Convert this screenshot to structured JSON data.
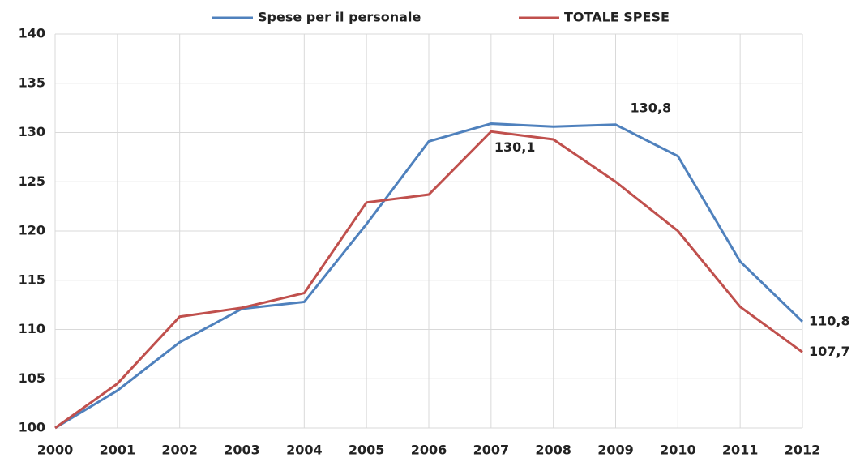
{
  "chart_data": {
    "type": "line",
    "categories": [
      "2000",
      "2001",
      "2002",
      "2003",
      "2004",
      "2005",
      "2006",
      "2007",
      "2008",
      "2009",
      "2010",
      "2011",
      "2012"
    ],
    "series": [
      {
        "name": "Spese per il personale",
        "color": "#4f81bd",
        "values": [
          100,
          103.8,
          108.7,
          112.1,
          112.8,
          120.7,
          129.1,
          130.9,
          130.6,
          130.8,
          127.6,
          116.9,
          110.8
        ],
        "value_labels": [
          null,
          null,
          null,
          null,
          null,
          null,
          null,
          null,
          null,
          "130,8",
          null,
          null,
          "110,8"
        ]
      },
      {
        "name": "TOTALE SPESE",
        "color": "#c0504d",
        "values": [
          100,
          104.5,
          111.3,
          112.2,
          113.7,
          122.9,
          123.7,
          130.1,
          129.3,
          125.0,
          120.0,
          112.3,
          107.7
        ],
        "value_labels": [
          null,
          null,
          null,
          null,
          null,
          null,
          null,
          "130,1",
          null,
          null,
          null,
          null,
          "107,7"
        ]
      }
    ],
    "ylim": [
      100,
      140
    ],
    "yticks": [
      100,
      105,
      110,
      115,
      120,
      125,
      130,
      135,
      140
    ],
    "grid": true,
    "legend": "top"
  }
}
